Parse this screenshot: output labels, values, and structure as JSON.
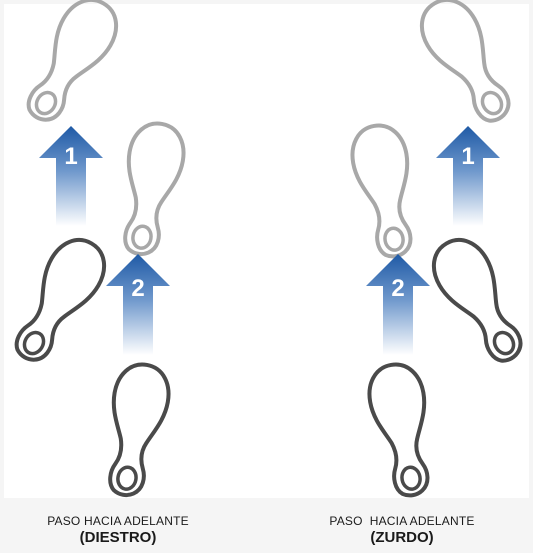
{
  "panels": [
    {
      "id": "diestro",
      "caption_line1": "PASO HACIA ADELANTE",
      "caption_line2": "(DIESTRO)",
      "step1_number": "1",
      "step2_number": "2"
    },
    {
      "id": "zurdo",
      "caption_line1": "PASO  HACIA ADELANTE",
      "caption_line2": "(ZURDO)",
      "step1_number": "1",
      "step2_number": "2"
    }
  ],
  "colors": {
    "arrow_top": "#1f5aa6",
    "arrow_bottom": "#ffffff",
    "foot_start": "#4a4a4a",
    "foot_end": "#a8a8a8"
  }
}
